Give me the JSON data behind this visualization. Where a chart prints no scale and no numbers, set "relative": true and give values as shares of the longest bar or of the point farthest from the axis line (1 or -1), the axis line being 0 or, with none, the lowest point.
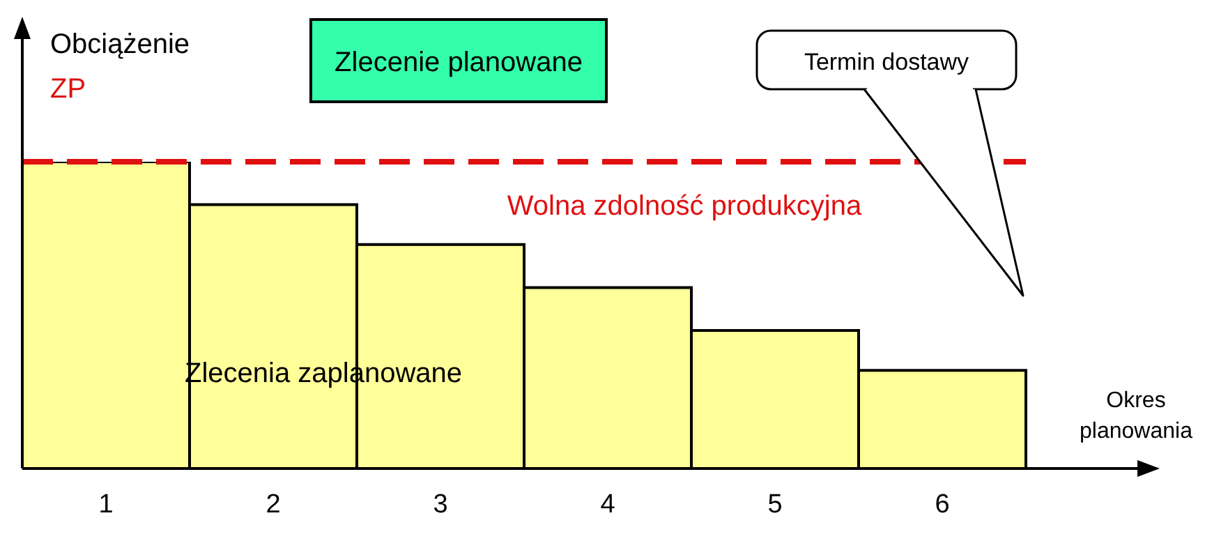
{
  "chart_data": {
    "type": "bar",
    "relative": true,
    "categories": [
      "1",
      "2",
      "3",
      "4",
      "5",
      "6"
    ],
    "values": [
      1,
      0.86,
      0.73,
      0.59,
      0.45,
      0.32
    ],
    "color": "#ffff99",
    "ylabel": "Obciążenie",
    "xlabel": "Okres planowania",
    "ref_lines": [
      {
        "axis": "y",
        "value": 1,
        "label": "ZP",
        "color": "#e01010",
        "line_style": "dashed"
      }
    ],
    "annotations": [
      "Zlecenie planowane",
      "Wolna zdolność produkcyjna",
      "Zlecenia zaplanowane",
      "Termin dostawy"
    ]
  }
}
